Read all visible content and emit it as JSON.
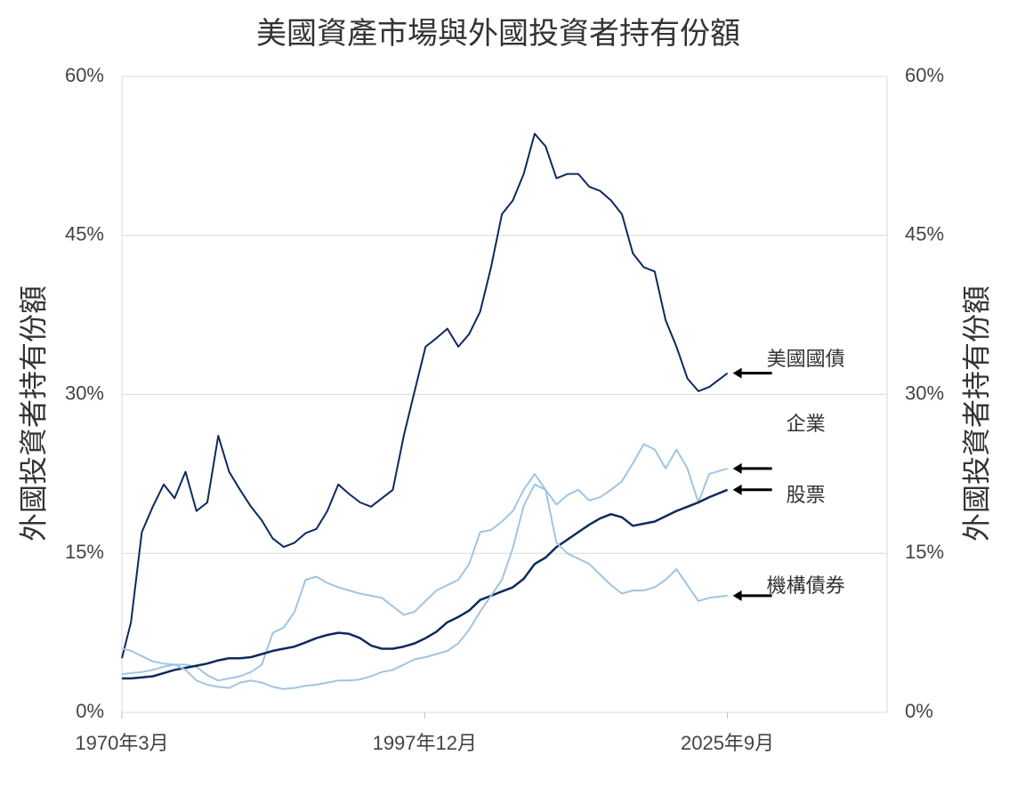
{
  "chart_data": {
    "type": "line",
    "title": "美國資產市場與外國投資者持有份額",
    "ylabel": "外國投資者持有份額",
    "y2label": "外國投資者持有份額",
    "x": [
      1970.17,
      1971,
      1972,
      1973,
      1974,
      1975,
      1976,
      1977,
      1978,
      1979,
      1980,
      1981,
      1982,
      1983,
      1984,
      1985,
      1986,
      1987,
      1988,
      1989,
      1990,
      1991,
      1992,
      1993,
      1994,
      1995,
      1996,
      1997,
      1998,
      1999,
      2000,
      2001,
      2002,
      2003,
      2004,
      2005,
      2006,
      2007,
      2008,
      2009,
      2010,
      2011,
      2012,
      2013,
      2014,
      2015,
      2016,
      2017,
      2018,
      2019,
      2020,
      2021,
      2022,
      2023,
      2024,
      2025.67
    ],
    "series": [
      {
        "name": "美國國債",
        "color": "#0d2a5c",
        "width": 2,
        "values": [
          5.1,
          8.5,
          17,
          19.4,
          21.5,
          20.2,
          22.7,
          19,
          19.8,
          26.1,
          22.7,
          21,
          19.4,
          18.1,
          16.4,
          15.6,
          16,
          16.9,
          17.3,
          19,
          21.5,
          20.6,
          19.8,
          19.4,
          20.2,
          21,
          26.1,
          30.3,
          34.5,
          35.3,
          36.2,
          34.5,
          35.7,
          37.8,
          42,
          47,
          48.3,
          50.8,
          54.6,
          53.4,
          50.4,
          50.8,
          50.8,
          49.6,
          49.2,
          48.3,
          47,
          43.3,
          42,
          41.6,
          37,
          34.5,
          31.5,
          30.3,
          30.7,
          32
        ]
      },
      {
        "name": "企業",
        "color": "#9fc5e3",
        "width": 2,
        "values": [
          3.6,
          3.7,
          3.8,
          4.0,
          4.3,
          4.5,
          4.5,
          4.3,
          3.5,
          3.0,
          3.2,
          3.4,
          3.8,
          4.5,
          7.5,
          8.0,
          9.5,
          12.5,
          12.8,
          12.2,
          11.8,
          11.5,
          11.2,
          11.0,
          10.8,
          10.0,
          9.2,
          9.5,
          10.5,
          11.5,
          12.0,
          12.5,
          14.0,
          17.0,
          17.2,
          18.0,
          19.0,
          21.0,
          22.5,
          21.0,
          19.6,
          20.5,
          21.0,
          20.0,
          20.3,
          21.0,
          21.8,
          23.5,
          25.3,
          24.8,
          23.0,
          24.8,
          23.0,
          19.8,
          22.5,
          23.0
        ]
      },
      {
        "name": "股票",
        "color": "#0d2a5c",
        "width": 2.5,
        "values": [
          3.2,
          3.2,
          3.3,
          3.4,
          3.7,
          4.0,
          4.2,
          4.4,
          4.6,
          4.9,
          5.1,
          5.1,
          5.2,
          5.5,
          5.8,
          6.0,
          6.2,
          6.6,
          7.0,
          7.3,
          7.5,
          7.4,
          7.0,
          6.3,
          6.0,
          6.0,
          6.2,
          6.5,
          7.0,
          7.6,
          8.5,
          9.0,
          9.6,
          10.6,
          11.0,
          11.4,
          11.8,
          12.6,
          14.0,
          14.6,
          15.6,
          16.3,
          17.0,
          17.7,
          18.3,
          18.7,
          18.4,
          17.6,
          17.8,
          18.0,
          18.5,
          19.0,
          19.4,
          19.8,
          20.3,
          21.0
        ]
      },
      {
        "name": "機構債券",
        "color": "#9fc5e3",
        "width": 2,
        "values": [
          6.0,
          5.8,
          5.3,
          4.8,
          4.6,
          4.5,
          4.0,
          3.0,
          2.6,
          2.4,
          2.3,
          2.8,
          3.0,
          2.8,
          2.4,
          2.2,
          2.3,
          2.5,
          2.6,
          2.8,
          3.0,
          3.0,
          3.1,
          3.4,
          3.8,
          4.0,
          4.5,
          5.0,
          5.2,
          5.5,
          5.8,
          6.5,
          7.8,
          9.5,
          11.0,
          12.5,
          15.5,
          19.5,
          21.5,
          21.0,
          16.0,
          15.0,
          14.5,
          14.0,
          13.0,
          12.0,
          11.2,
          11.5,
          11.5,
          11.8,
          12.5,
          13.5,
          12.0,
          10.5,
          10.8,
          11.0
        ]
      }
    ],
    "xlim": [
      1970.17,
      2040.3
    ],
    "xticks": [
      {
        "value": 1970.17,
        "label": "1970年3月"
      },
      {
        "value": 1997.92,
        "label": "1997年12月"
      },
      {
        "value": 2025.67,
        "label": "2025年9月"
      }
    ],
    "ylim": [
      0,
      60
    ],
    "yticks": [
      {
        "value": 0,
        "label": "0%"
      },
      {
        "value": 15,
        "label": "15%"
      },
      {
        "value": 30,
        "label": "30%"
      },
      {
        "value": 45,
        "label": "45%"
      },
      {
        "value": 60,
        "label": "60%"
      }
    ],
    "y2lim": [
      0,
      60
    ],
    "y2ticks": [
      {
        "value": 0,
        "label": "0%"
      },
      {
        "value": 15,
        "label": "15%"
      },
      {
        "value": 30,
        "label": "30%"
      },
      {
        "value": 45,
        "label": "45%"
      },
      {
        "value": 60,
        "label": "60%"
      }
    ],
    "grid": true
  }
}
